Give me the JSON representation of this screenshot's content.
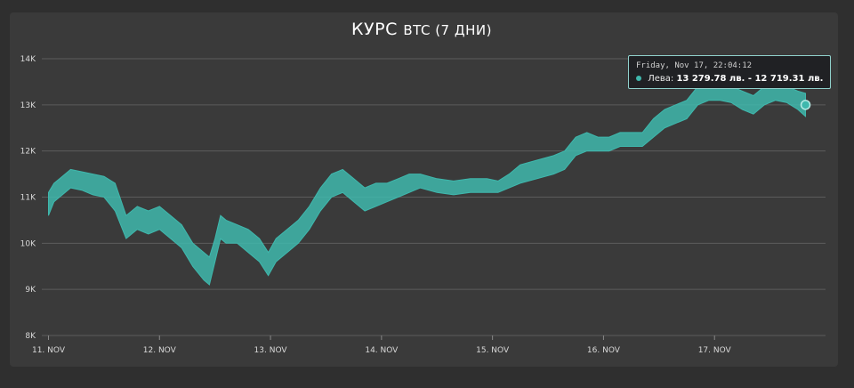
{
  "chart_data": {
    "type": "area",
    "title_main": "КУРС",
    "title_sub": "BTC (7 ДНИ)",
    "ylim": [
      8000,
      14000
    ],
    "yticks": [
      {
        "v": 8000,
        "label": "8K"
      },
      {
        "v": 9000,
        "label": "9K"
      },
      {
        "v": 10000,
        "label": "10K"
      },
      {
        "v": 11000,
        "label": "11K"
      },
      {
        "v": 12000,
        "label": "12K"
      },
      {
        "v": 13000,
        "label": "13K"
      },
      {
        "v": 14000,
        "label": "14K"
      }
    ],
    "xlim": [
      10.94,
      18.0
    ],
    "xticks": [
      {
        "v": 11,
        "label": "11. NOV"
      },
      {
        "v": 12,
        "label": "12. NOV"
      },
      {
        "v": 13,
        "label": "13. NOV"
      },
      {
        "v": 14,
        "label": "14. NOV"
      },
      {
        "v": 15,
        "label": "15. NOV"
      },
      {
        "v": 16,
        "label": "16. NOV"
      },
      {
        "v": 17,
        "label": "17. NOV"
      }
    ],
    "grid": true,
    "series": [
      {
        "color": "#3fb8ad",
        "points": [
          [
            11.0,
            10600,
            11100
          ],
          [
            11.05,
            10900,
            11300
          ],
          [
            11.1,
            11000,
            11400
          ],
          [
            11.2,
            11200,
            11600
          ],
          [
            11.3,
            11150,
            11550
          ],
          [
            11.4,
            11050,
            11500
          ],
          [
            11.5,
            11000,
            11450
          ],
          [
            11.6,
            10700,
            11300
          ],
          [
            11.7,
            10100,
            10600
          ],
          [
            11.8,
            10300,
            10800
          ],
          [
            11.9,
            10200,
            10700
          ],
          [
            12.0,
            10300,
            10800
          ],
          [
            12.1,
            10100,
            10600
          ],
          [
            12.2,
            9900,
            10400
          ],
          [
            12.3,
            9500,
            10000
          ],
          [
            12.4,
            9200,
            9800
          ],
          [
            12.45,
            9100,
            9700
          ],
          [
            12.5,
            9600,
            10100
          ],
          [
            12.55,
            10100,
            10600
          ],
          [
            12.6,
            10000,
            10500
          ],
          [
            12.7,
            10000,
            10400
          ],
          [
            12.8,
            9800,
            10300
          ],
          [
            12.9,
            9600,
            10100
          ],
          [
            12.98,
            9300,
            9800
          ],
          [
            13.05,
            9600,
            10100
          ],
          [
            13.15,
            9800,
            10300
          ],
          [
            13.25,
            10000,
            10500
          ],
          [
            13.35,
            10300,
            10800
          ],
          [
            13.45,
            10700,
            11200
          ],
          [
            13.55,
            11000,
            11500
          ],
          [
            13.65,
            11100,
            11600
          ],
          [
            13.75,
            10900,
            11400
          ],
          [
            13.85,
            10700,
            11200
          ],
          [
            13.95,
            10800,
            11300
          ],
          [
            14.05,
            10900,
            11300
          ],
          [
            14.15,
            11000,
            11400
          ],
          [
            14.25,
            11100,
            11500
          ],
          [
            14.35,
            11200,
            11500
          ],
          [
            14.5,
            11100,
            11400
          ],
          [
            14.65,
            11050,
            11350
          ],
          [
            14.8,
            11100,
            11400
          ],
          [
            14.95,
            11100,
            11400
          ],
          [
            15.05,
            11100,
            11350
          ],
          [
            15.15,
            11200,
            11500
          ],
          [
            15.25,
            11300,
            11700
          ],
          [
            15.4,
            11400,
            11800
          ],
          [
            15.55,
            11500,
            11900
          ],
          [
            15.65,
            11600,
            12000
          ],
          [
            15.75,
            11900,
            12300
          ],
          [
            15.85,
            12000,
            12400
          ],
          [
            15.95,
            12000,
            12300
          ],
          [
            16.05,
            12000,
            12300
          ],
          [
            16.15,
            12100,
            12400
          ],
          [
            16.25,
            12100,
            12400
          ],
          [
            16.35,
            12100,
            12400
          ],
          [
            16.45,
            12300,
            12700
          ],
          [
            16.55,
            12500,
            12900
          ],
          [
            16.65,
            12600,
            13000
          ],
          [
            16.75,
            12700,
            13100
          ],
          [
            16.85,
            13000,
            13400
          ],
          [
            16.95,
            13100,
            13500
          ],
          [
            17.05,
            13100,
            13400
          ],
          [
            17.15,
            13050,
            13400
          ],
          [
            17.25,
            12900,
            13300
          ],
          [
            17.35,
            12800,
            13200
          ],
          [
            17.45,
            13000,
            13400
          ],
          [
            17.55,
            13100,
            13450
          ],
          [
            17.65,
            13050,
            13400
          ],
          [
            17.75,
            12900,
            13300
          ],
          [
            17.82,
            12750,
            13250
          ]
        ]
      }
    ]
  },
  "tooltip": {
    "date": "Friday, Nov 17, 22:04:12",
    "series_label": "Лева:",
    "value": "13 279.78 лв. - 12 719.31 лв."
  }
}
